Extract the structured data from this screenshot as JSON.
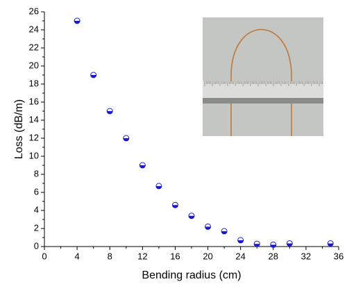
{
  "chart_data": {
    "type": "scatter",
    "x_label": "Bending radius (cm)",
    "y_label": "Loss (dB/m)",
    "series": [
      {
        "color": "#1a1acc",
        "x": [
          4,
          6,
          8,
          10,
          12,
          14,
          16,
          18,
          20,
          22,
          24,
          26,
          28,
          30,
          35
        ],
        "values": [
          25,
          19,
          15,
          12,
          9,
          6.7,
          4.6,
          3.4,
          2.2,
          1.7,
          0.7,
          0.3,
          0.2,
          0.35,
          0.35
        ]
      }
    ],
    "xlim": [
      0,
      36
    ],
    "xticks": [
      0,
      4,
      8,
      12,
      16,
      20,
      24,
      28,
      32,
      36
    ],
    "ylim": [
      0,
      26
    ],
    "yticks": [
      0,
      2,
      4,
      6,
      8,
      10,
      12,
      14,
      16,
      18,
      20,
      22,
      24,
      26
    ]
  }
}
